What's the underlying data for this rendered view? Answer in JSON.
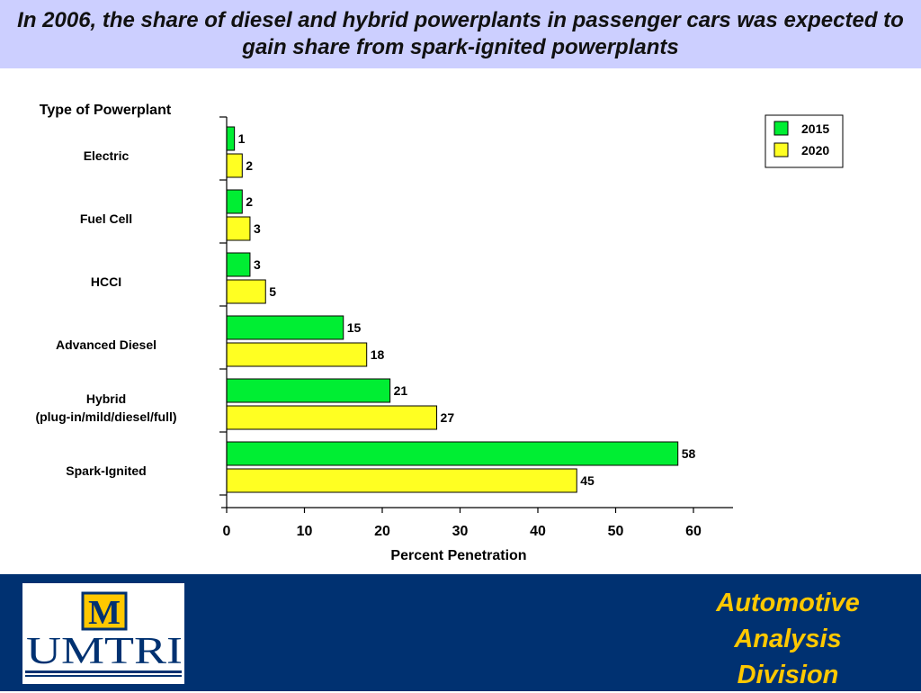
{
  "header": {
    "title": "In 2006, the share of diesel and hybrid powerplants in passenger cars was expected to gain share from spark-ignited powerplants"
  },
  "chart_data": {
    "type": "bar",
    "orientation": "horizontal",
    "y_axis_title": "Type of Powerplant",
    "xlabel": "Percent Penetration",
    "xlim": [
      0,
      65
    ],
    "xticks": [
      0,
      10,
      20,
      30,
      40,
      50,
      60
    ],
    "grid": false,
    "legend_position": "top-right",
    "categories": [
      [
        "Electric"
      ],
      [
        "Fuel Cell"
      ],
      [
        "HCCI"
      ],
      [
        "Advanced Diesel"
      ],
      [
        "Hybrid",
        "(plug-in/mild/diesel/full)"
      ],
      [
        "Spark-Ignited"
      ]
    ],
    "series": [
      {
        "name": "2015",
        "color": "#00ee33",
        "values": [
          1,
          2,
          3,
          15,
          21,
          58
        ]
      },
      {
        "name": "2020",
        "color": "#ffff22",
        "values": [
          2,
          3,
          5,
          18,
          27,
          45
        ]
      }
    ]
  },
  "footer": {
    "logo_letter": "M",
    "logo_text": "UMTRI",
    "division_lines": [
      "Automotive",
      "Analysis",
      "Division"
    ],
    "background": "#003171",
    "text_color": "#ffc800"
  }
}
